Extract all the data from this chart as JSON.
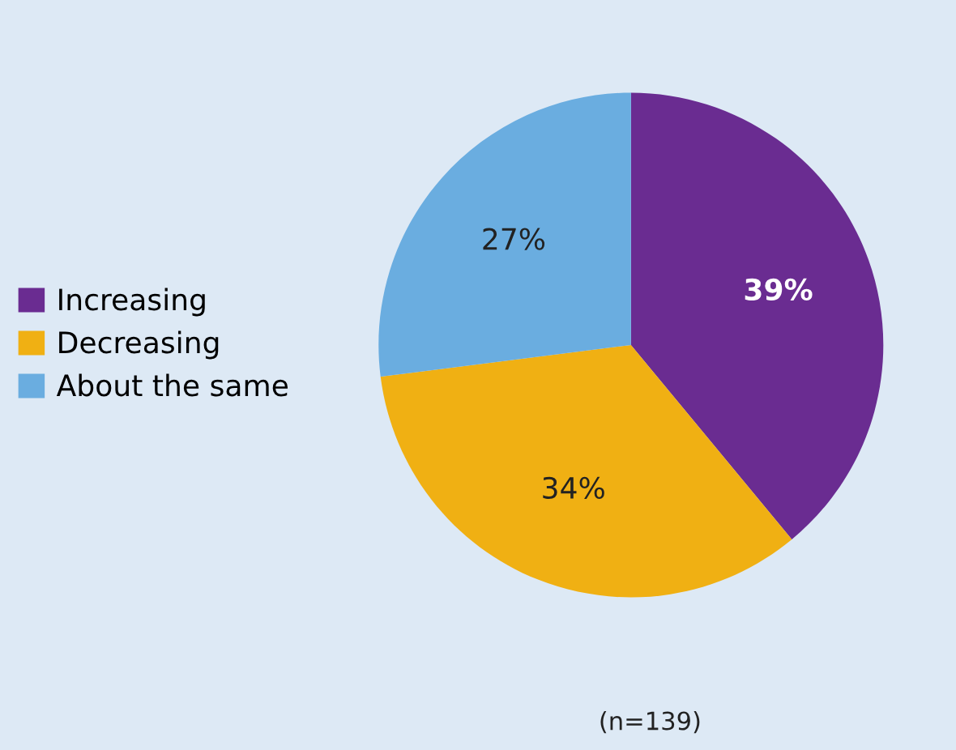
{
  "chart_data": {
    "type": "pie",
    "categories": [
      "Increasing",
      "Decreasing",
      "About the same"
    ],
    "values": [
      39,
      34,
      27
    ],
    "colors": [
      "#6a2c91",
      "#f0b013",
      "#6aade0"
    ],
    "value_labels": [
      "39%",
      "34%",
      "27%"
    ],
    "legend": "left",
    "annotations": [
      "(n=139)"
    ]
  }
}
